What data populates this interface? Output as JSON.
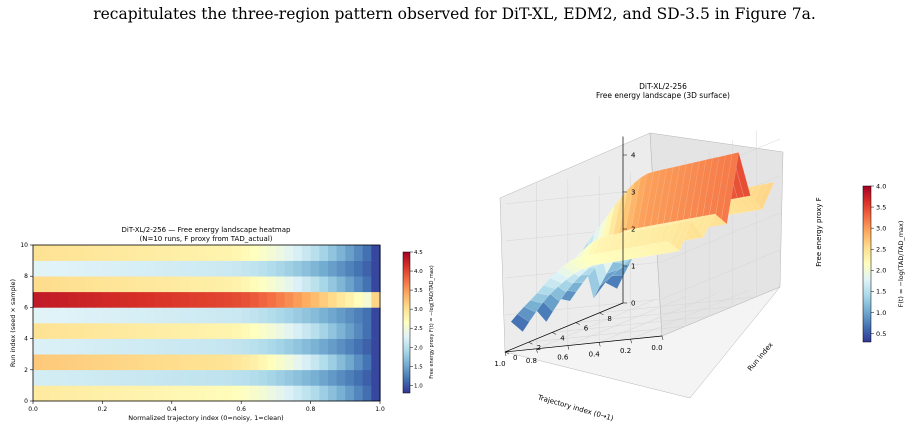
{
  "page_text": "recapitulates the three-region pattern observed for DiT-XL, EDM2, and SD-3.5 in Figure 7a.",
  "colors": {
    "colormap": [
      "#313695",
      "#4575b4",
      "#74add1",
      "#abd9e9",
      "#e0f3f8",
      "#ffffbf",
      "#fee090",
      "#fdae61",
      "#f46d43",
      "#d73027",
      "#a50026"
    ],
    "axis": "#000000",
    "pane": "#f2f2f2",
    "grid": "#d6d6d6"
  },
  "chart_data": [
    {
      "type": "heatmap",
      "title": "DiT-XL/2-256 — Free energy landscape heatmap",
      "subtitle": "(N=10 runs, F proxy from TAD_actual)",
      "xlabel": "Normalized trajectory index (0=noisy, 1=clean)",
      "ylabel": "Run index (seed × sample)",
      "xlim": [
        0,
        1
      ],
      "ylim": [
        0,
        10
      ],
      "xticks": [
        "0.0",
        "0.2",
        "0.4",
        "0.6",
        "0.8",
        "1.0"
      ],
      "yticks": [
        "0",
        "2",
        "4",
        "6",
        "8",
        "10"
      ],
      "colorbar_label": "Free energy proxy F(t) = −log(TAD/TAD_max)",
      "colorbar_range": [
        0.8,
        4.5
      ],
      "colorbar_ticks": [
        "1.0",
        "1.5",
        "2.0",
        "2.5",
        "3.0",
        "3.5",
        "4.0",
        "4.5"
      ],
      "rows": [
        {
          "run": 0,
          "start": 2.9,
          "end": 0.9
        },
        {
          "run": 1,
          "start": 2.2,
          "end": 0.9
        },
        {
          "run": 2,
          "start": 3.2,
          "end": 0.9
        },
        {
          "run": 3,
          "start": 2.25,
          "end": 0.9
        },
        {
          "run": 4,
          "start": 3.0,
          "end": 0.9
        },
        {
          "run": 5,
          "start": 2.3,
          "end": 1.0
        },
        {
          "run": 6,
          "start": 4.3,
          "end": 2.3
        },
        {
          "run": 7,
          "start": 3.05,
          "end": 0.9
        },
        {
          "run": 8,
          "start": 2.3,
          "end": 0.9
        },
        {
          "run": 9,
          "start": 3.0,
          "end": 0.9
        }
      ]
    },
    {
      "type": "surface",
      "title": "DiT-XL/2-256",
      "subtitle": "Free energy landscape (3D surface)",
      "xlabel": "Trajectory index (0→1)",
      "ylabel": "Run index",
      "zlabel": "Free energy proxy F",
      "xlim": [
        0,
        1
      ],
      "ylim": [
        0,
        10
      ],
      "zlim": [
        0,
        4.5
      ],
      "xticks": [
        "0.0",
        "0.2",
        "0.4",
        "0.6",
        "0.8",
        "1.0"
      ],
      "yticks": [
        "0",
        "2",
        "4",
        "6",
        "8"
      ],
      "zticks": [
        "0",
        "1",
        "2",
        "3",
        "4"
      ],
      "colorbar_label": "F(t) = −log(TAD/TAD_max)",
      "colorbar_range": [
        0.3,
        4.0
      ],
      "colorbar_ticks": [
        "0.5",
        "1.0",
        "1.5",
        "2.0",
        "2.5",
        "3.0",
        "3.5",
        "4.0"
      ],
      "rows": [
        {
          "run": 0,
          "start": 2.5,
          "end": 0.5
        },
        {
          "run": 1,
          "start": 2.1,
          "end": 0.5
        },
        {
          "run": 2,
          "start": 2.8,
          "end": 0.6
        },
        {
          "run": 3,
          "start": 2.2,
          "end": 0.5
        },
        {
          "run": 4,
          "start": 2.7,
          "end": 0.6
        },
        {
          "run": 5,
          "start": 2.3,
          "end": 0.8
        },
        {
          "run": 6,
          "start": 4.1,
          "end": 1.6
        },
        {
          "run": 7,
          "start": 2.8,
          "end": 0.6
        },
        {
          "run": 8,
          "start": 2.3,
          "end": 0.5
        },
        {
          "run": 9,
          "start": 2.9,
          "end": 0.6
        }
      ]
    }
  ]
}
